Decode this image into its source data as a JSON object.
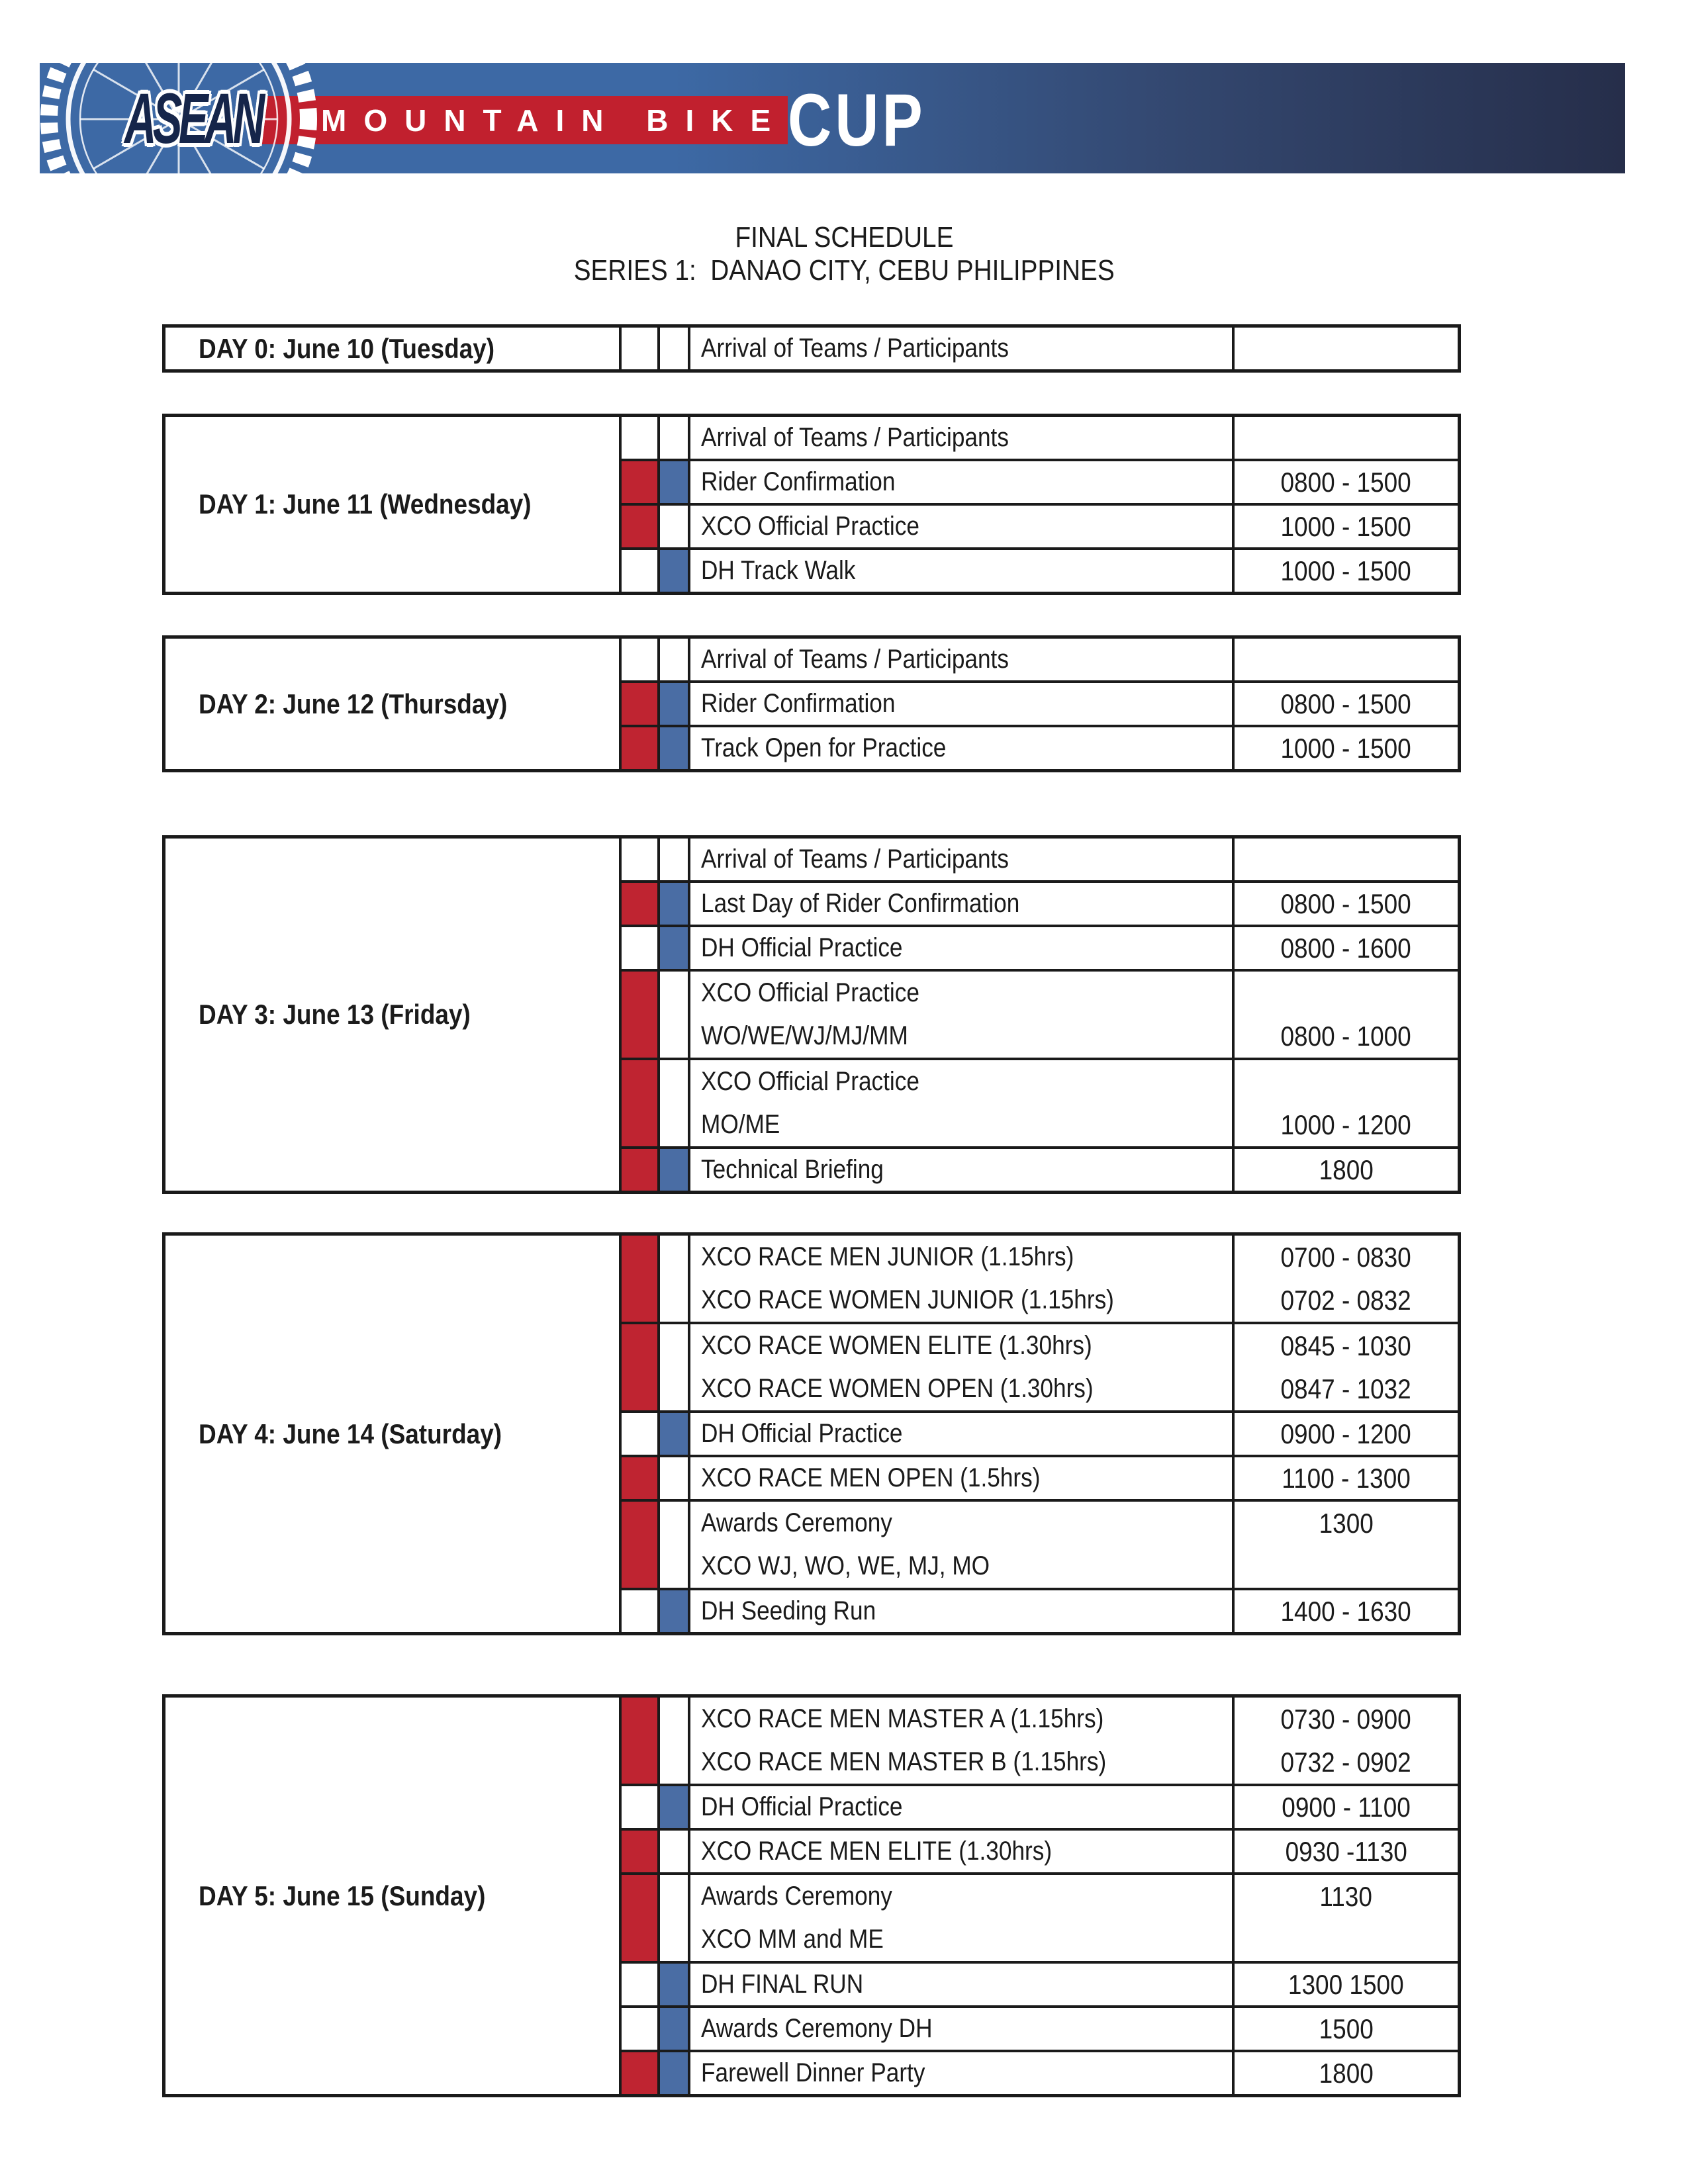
{
  "banner": {
    "asean": "ASEAN",
    "mountain_bike": "MOUNTAIN BIKE",
    "cup": "CUP"
  },
  "title": {
    "line1": "FINAL SCHEDULE",
    "line2": "SERIES 1:  DANAO CITY, CEBU PHILIPPINES"
  },
  "legend": {
    "red_means": "XCO event marker",
    "blue_means": "DH event marker"
  },
  "colors": {
    "red": "#bf2431",
    "blue": "#4a6da4",
    "logo_red": "#c1202e",
    "banner_blue": "#3d69a5",
    "banner_dark": "#262e4a",
    "border": "#1a1a1a"
  },
  "schedule": {
    "blocks": [
      {
        "day": "DAY 0: June 10 (Tuesday)",
        "rows": [
          {
            "red": false,
            "blue": false,
            "lines": [
              {
                "activity": "Arrival of Teams / Participants",
                "time": ""
              }
            ]
          }
        ]
      },
      {
        "day": "DAY 1: June 11 (Wednesday)",
        "rows": [
          {
            "red": false,
            "blue": false,
            "lines": [
              {
                "activity": "Arrival of Teams / Participants",
                "time": ""
              }
            ]
          },
          {
            "red": true,
            "blue": true,
            "lines": [
              {
                "activity": "Rider Confirmation",
                "time": "0800 - 1500"
              }
            ]
          },
          {
            "red": true,
            "blue": false,
            "lines": [
              {
                "activity": "XCO Official Practice",
                "time": "1000 - 1500"
              }
            ]
          },
          {
            "red": false,
            "blue": true,
            "lines": [
              {
                "activity": "DH Track Walk",
                "time": "1000 - 1500"
              }
            ]
          }
        ]
      },
      {
        "day": "DAY 2: June 12 (Thursday)",
        "rows": [
          {
            "red": false,
            "blue": false,
            "lines": [
              {
                "activity": "Arrival of Teams / Participants",
                "time": ""
              }
            ]
          },
          {
            "red": true,
            "blue": true,
            "lines": [
              {
                "activity": "Rider Confirmation",
                "time": "0800 - 1500"
              }
            ]
          },
          {
            "red": true,
            "blue": true,
            "lines": [
              {
                "activity": "Track Open for Practice",
                "time": "1000 - 1500"
              }
            ]
          }
        ]
      },
      {
        "day": "DAY 3: June 13 (Friday)",
        "rows": [
          {
            "red": false,
            "blue": false,
            "lines": [
              {
                "activity": "Arrival of Teams / Participants",
                "time": ""
              }
            ]
          },
          {
            "red": true,
            "blue": true,
            "lines": [
              {
                "activity": "Last Day of Rider Confirmation",
                "time": "0800 - 1500"
              }
            ]
          },
          {
            "red": false,
            "blue": true,
            "lines": [
              {
                "activity": "DH Official Practice",
                "time": "0800 - 1600"
              }
            ]
          },
          {
            "red": true,
            "blue": false,
            "lines": [
              {
                "activity": "XCO Official Practice",
                "time": ""
              },
              {
                "activity": "WO/WE/WJ/MJ/MM",
                "time": "0800 - 1000"
              }
            ]
          },
          {
            "red": true,
            "blue": false,
            "lines": [
              {
                "activity": "XCO Official Practice",
                "time": ""
              },
              {
                "activity": "MO/ME",
                "time": "1000 - 1200"
              }
            ]
          },
          {
            "red": true,
            "blue": true,
            "lines": [
              {
                "activity": "Technical Briefing",
                "time": "1800"
              }
            ]
          }
        ]
      },
      {
        "day": "DAY 4: June 14 (Saturday)",
        "rows": [
          {
            "red": true,
            "blue": false,
            "lines": [
              {
                "activity": "XCO RACE MEN JUNIOR (1.15hrs)",
                "time": "0700 - 0830"
              },
              {
                "activity": "XCO RACE WOMEN JUNIOR (1.15hrs)",
                "time": "0702 - 0832"
              }
            ]
          },
          {
            "red": true,
            "blue": false,
            "lines": [
              {
                "activity": "XCO RACE WOMEN ELITE (1.30hrs)",
                "time": "0845 - 1030"
              },
              {
                "activity": "XCO RACE WOMEN OPEN (1.30hrs)",
                "time": "0847 - 1032"
              }
            ]
          },
          {
            "red": false,
            "blue": true,
            "lines": [
              {
                "activity": "DH Official Practice",
                "time": "0900 - 1200"
              }
            ]
          },
          {
            "red": true,
            "blue": false,
            "lines": [
              {
                "activity": "XCO RACE MEN OPEN (1.5hrs)",
                "time": "1100 - 1300"
              }
            ]
          },
          {
            "red": true,
            "blue": false,
            "lines": [
              {
                "activity": "Awards Ceremony",
                "time": "1300"
              },
              {
                "activity": "XCO WJ, WO, WE, MJ, MO",
                "time": ""
              }
            ]
          },
          {
            "red": false,
            "blue": true,
            "lines": [
              {
                "activity": "DH Seeding Run",
                "time": "1400 - 1630"
              }
            ]
          }
        ]
      },
      {
        "day": "DAY 5: June 15 (Sunday)",
        "rows": [
          {
            "red": true,
            "blue": false,
            "lines": [
              {
                "activity": "XCO RACE MEN MASTER A (1.15hrs)",
                "time": "0730 - 0900"
              },
              {
                "activity": "XCO RACE MEN MASTER B (1.15hrs)",
                "time": "0732 - 0902"
              }
            ]
          },
          {
            "red": false,
            "blue": true,
            "lines": [
              {
                "activity": "DH Official Practice",
                "time": "0900 - 1100"
              }
            ]
          },
          {
            "red": true,
            "blue": false,
            "lines": [
              {
                "activity": "XCO RACE MEN ELITE (1.30hrs)",
                "time": "0930 -1130"
              }
            ]
          },
          {
            "red": true,
            "blue": false,
            "lines": [
              {
                "activity": "Awards Ceremony",
                "time": "1130"
              },
              {
                "activity": "XCO MM and ME",
                "time": ""
              }
            ]
          },
          {
            "red": false,
            "blue": true,
            "lines": [
              {
                "activity": "DH FINAL RUN",
                "time": "1300 1500"
              }
            ]
          },
          {
            "red": false,
            "blue": true,
            "lines": [
              {
                "activity": "Awards Ceremony DH",
                "time": "1500"
              }
            ]
          },
          {
            "red": true,
            "blue": true,
            "lines": [
              {
                "activity": "Farewell Dinner Party",
                "time": "1800"
              }
            ]
          }
        ]
      }
    ]
  }
}
